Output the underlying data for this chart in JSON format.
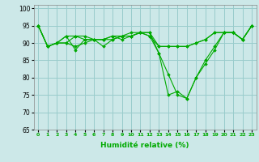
{
  "xlabel": "Humidité relative (%)",
  "xlim": [
    -0.5,
    23.5
  ],
  "ylim": [
    65,
    101
  ],
  "yticks": [
    65,
    70,
    75,
    80,
    85,
    90,
    95,
    100
  ],
  "xticks": [
    0,
    1,
    2,
    3,
    4,
    5,
    6,
    7,
    8,
    9,
    10,
    11,
    12,
    13,
    14,
    15,
    16,
    17,
    18,
    19,
    20,
    21,
    22,
    23
  ],
  "background_color": "#cce8e8",
  "grid_color": "#99cccc",
  "line_color": "#00aa00",
  "lines": [
    [
      95,
      89,
      90,
      92,
      88,
      91,
      91,
      89,
      91,
      92,
      93,
      93,
      93,
      87,
      75,
      76,
      74,
      80,
      84,
      88,
      93,
      93,
      91,
      95
    ],
    [
      95,
      89,
      90,
      92,
      92,
      92,
      91,
      91,
      92,
      92,
      92,
      93,
      92,
      89,
      89,
      89,
      89,
      90,
      91,
      93,
      93,
      93,
      91,
      95
    ],
    [
      95,
      89,
      90,
      90,
      92,
      91,
      91,
      91,
      92,
      91,
      92,
      93,
      93,
      89,
      89,
      89,
      89,
      90,
      91,
      93,
      93,
      93,
      91,
      95
    ],
    [
      95,
      89,
      90,
      90,
      89,
      90,
      91,
      91,
      91,
      92,
      92,
      93,
      92,
      87,
      81,
      75,
      74,
      80,
      85,
      89,
      93,
      93,
      91,
      95
    ]
  ]
}
